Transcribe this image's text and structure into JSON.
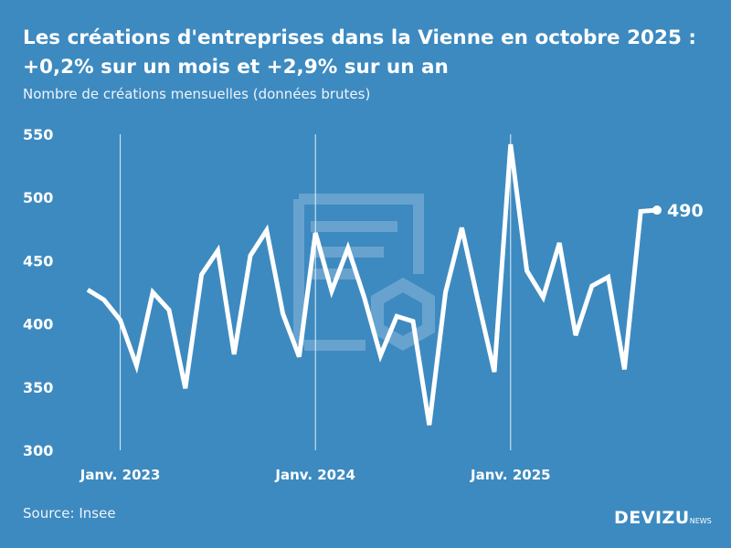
{
  "title_line1": "Les créations d'entreprises dans la Vienne en octobre 2025 :",
  "title_line2": "+0,2% sur un mois et +2,9% sur un an",
  "subtitle": "Nombre de créations mensuelles (données brutes)",
  "source": "Source: Insee",
  "brand": {
    "name": "DEVIZU",
    "suffix": "NEWS"
  },
  "colors": {
    "background": "#3d8ac0",
    "line": "#ffffff"
  },
  "chart_data": {
    "type": "line",
    "title": "Les créations d'entreprises dans la Vienne en octobre 2025 : +0,2% sur un mois et +2,9% sur un an",
    "ylabel": "",
    "xlabel": "",
    "ylim": [
      300,
      550
    ],
    "yticks": [
      300,
      350,
      400,
      450,
      500,
      550
    ],
    "xtick_labels": [
      {
        "month": "2023-01",
        "label": "Janv. 2023"
      },
      {
        "month": "2024-01",
        "label": "Janv. 2024"
      },
      {
        "month": "2025-01",
        "label": "Janv. 2025"
      }
    ],
    "grid": "vertical lines at January",
    "end_label": "490",
    "x": [
      "2022-11",
      "2022-12",
      "2023-01",
      "2023-02",
      "2023-03",
      "2023-04",
      "2023-05",
      "2023-06",
      "2023-07",
      "2023-08",
      "2023-09",
      "2023-10",
      "2023-11",
      "2023-12",
      "2024-01",
      "2024-02",
      "2024-03",
      "2024-04",
      "2024-05",
      "2024-06",
      "2024-07",
      "2024-08",
      "2024-09",
      "2024-10",
      "2024-11",
      "2024-12",
      "2025-01",
      "2025-02",
      "2025-03",
      "2025-04",
      "2025-05",
      "2025-06",
      "2025-07",
      "2025-08",
      "2025-09",
      "2025-10"
    ],
    "values": [
      427,
      419,
      403,
      367,
      425,
      411,
      349,
      439,
      458,
      376,
      454,
      474,
      408,
      374,
      472,
      426,
      460,
      421,
      375,
      406,
      402,
      320,
      425,
      476,
      418,
      362,
      542,
      442,
      421,
      464,
      391,
      430,
      437,
      364,
      489,
      490
    ]
  }
}
